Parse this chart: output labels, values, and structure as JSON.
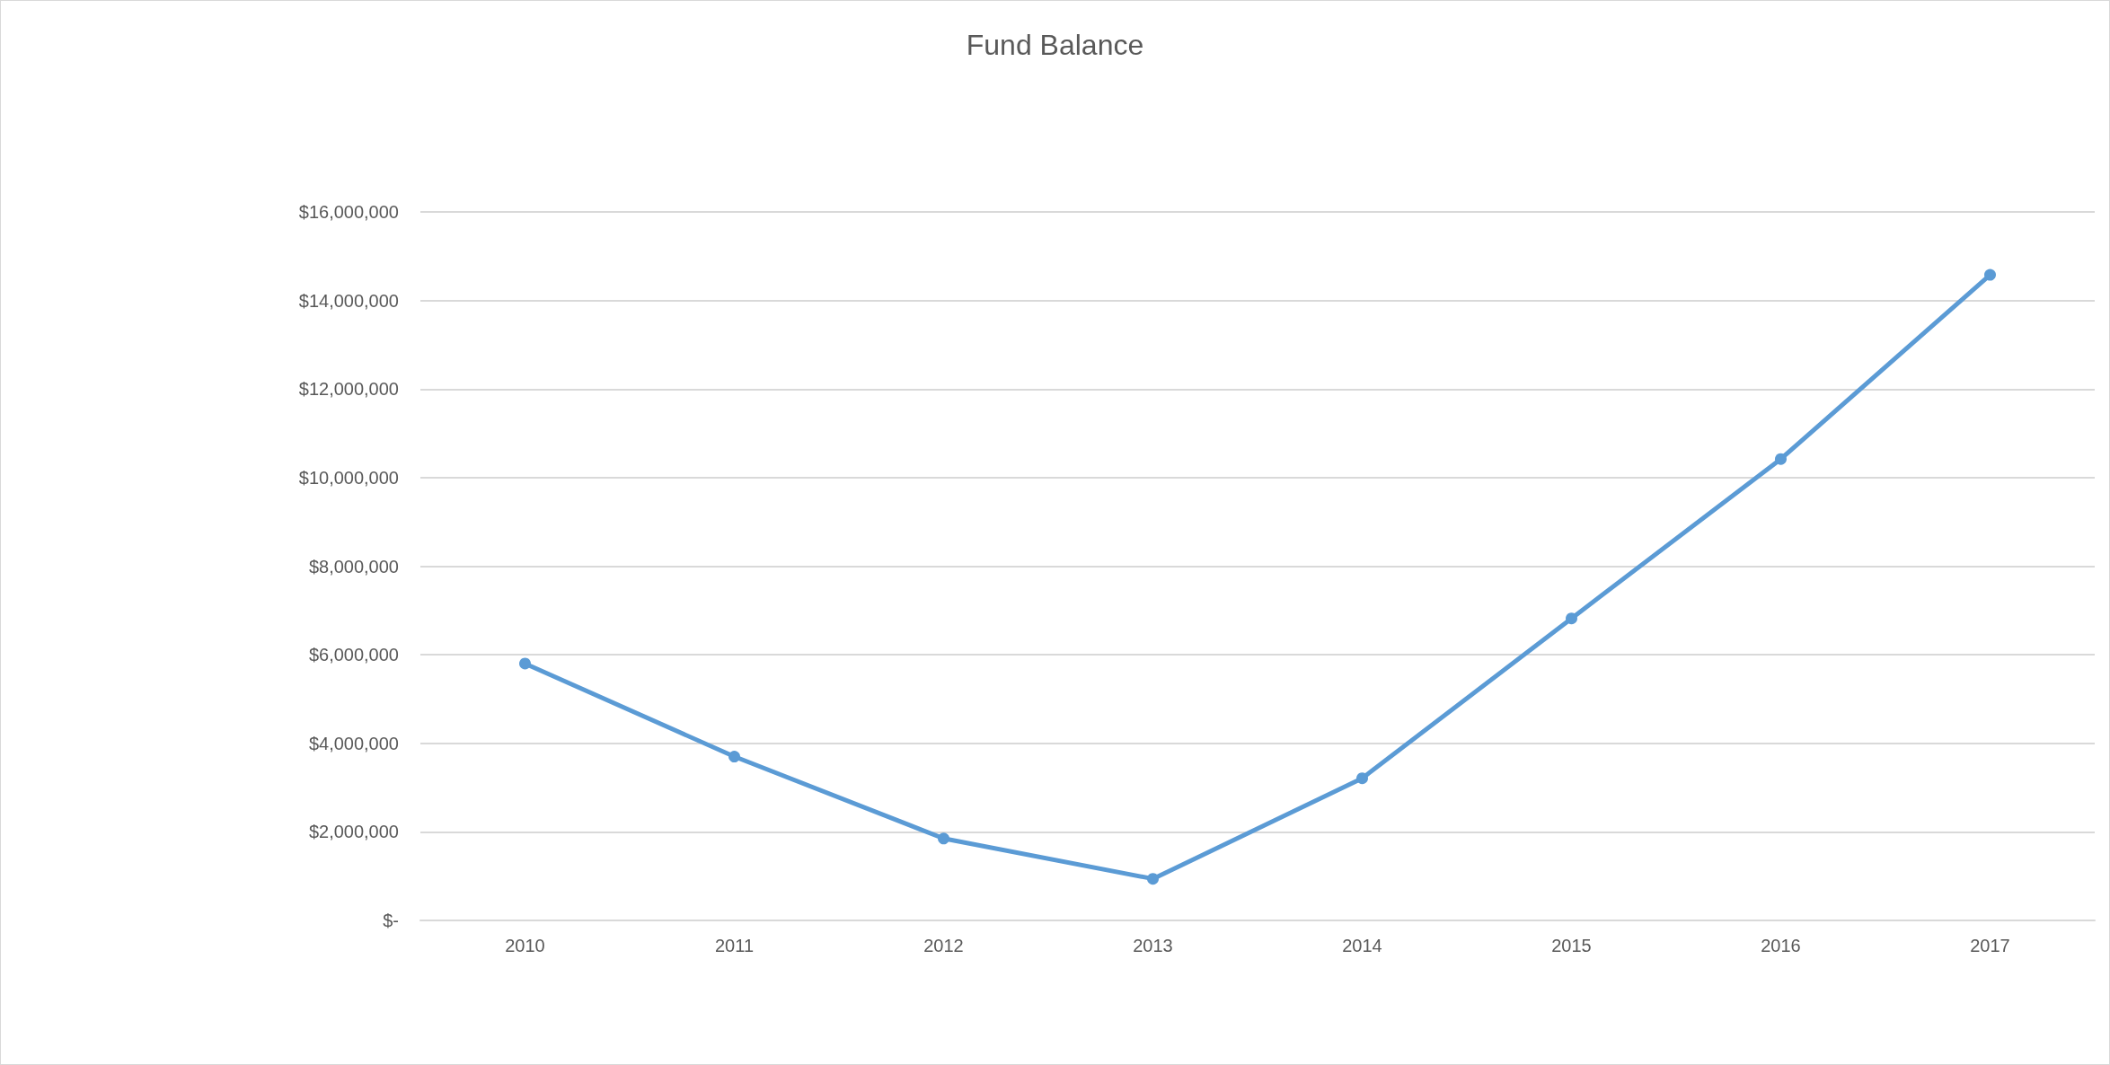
{
  "chart_data": {
    "type": "line",
    "title": "Fund Balance",
    "categories": [
      "2010",
      "2011",
      "2012",
      "2013",
      "2014",
      "2015",
      "2016",
      "2017"
    ],
    "series": [
      {
        "color": "#5b9bd5",
        "values": [
          5800000,
          3700000,
          1850000,
          940000,
          3210000,
          6820000,
          10420000,
          14580000
        ]
      }
    ],
    "ylim": [
      0,
      16000000
    ],
    "yticks": [
      {
        "value": 0,
        "label": "$-"
      },
      {
        "value": 2000000,
        "label": "$2,000,000"
      },
      {
        "value": 4000000,
        "label": "$4,000,000"
      },
      {
        "value": 6000000,
        "label": "$6,000,000"
      },
      {
        "value": 8000000,
        "label": "$8,000,000"
      },
      {
        "value": 10000000,
        "label": "$10,000,000"
      },
      {
        "value": 12000000,
        "label": "$12,000,000"
      },
      {
        "value": 14000000,
        "label": "$14,000,000"
      },
      {
        "value": 16000000,
        "label": "$16,000,000"
      }
    ],
    "grid": "y",
    "marker": "circle",
    "line_style": "solid"
  }
}
